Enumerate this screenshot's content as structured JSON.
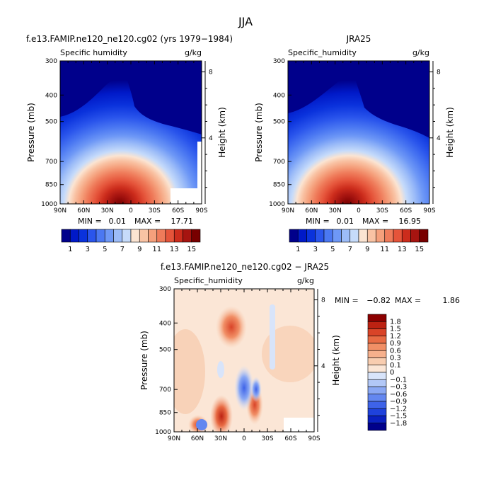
{
  "page_title": "JJA",
  "colors": {
    "humidity_scale": [
      "#00008b",
      "#0019c8",
      "#0a32dc",
      "#2a55ec",
      "#4b78f2",
      "#6e98f6",
      "#9cbcf8",
      "#c6dbfa",
      "#fbe4d2",
      "#f9c3a4",
      "#f5a07c",
      "#ef7b5a",
      "#e5543a",
      "#cc2c1c",
      "#a61410",
      "#780000"
    ],
    "diff_scale": [
      "#00008b",
      "#0a20c0",
      "#1f42dc",
      "#3e63e8",
      "#6387f0",
      "#8aa8f4",
      "#b2c8f7",
      "#d8e4fa",
      "#fbe6d6",
      "#f8cdb0",
      "#f6b08c",
      "#f18f66",
      "#e86b44",
      "#d94428",
      "#bc2212",
      "#8c0000"
    ]
  },
  "chart_data": [
    {
      "type": "heatmap",
      "title": "f.e13.FAMIP.ne120_ne120.cg02 (yrs 1979−1984)",
      "subtitle_left": "Specific humidity",
      "subtitle_right": "g/kg",
      "xlabel": "",
      "ylabel": "Pressure (mb)",
      "y2label": "Height (km)",
      "x_ticks": [
        "90N",
        "60N",
        "30N",
        "0",
        "30S",
        "60S",
        "90S"
      ],
      "y_ticks": [
        "300",
        "400",
        "500",
        "700",
        "850",
        "1000"
      ],
      "y2_ticks": [
        "8",
        "4"
      ],
      "stats": {
        "min_label": "MIN =",
        "min": "0.01",
        "max_label": "MAX =",
        "max": "17.71"
      },
      "colorbar_labels": [
        "1",
        "3",
        "5",
        "7",
        "9",
        "11",
        "13",
        "15"
      ]
    },
    {
      "type": "heatmap",
      "title": "JRA25",
      "subtitle_left": "Specific_humidity",
      "subtitle_right": "g/kg",
      "xlabel": "",
      "ylabel": "Pressure (mb)",
      "y2label": "Height (km)",
      "x_ticks": [
        "90N",
        "60N",
        "30N",
        "0",
        "30S",
        "60S",
        "90S"
      ],
      "y_ticks": [
        "300",
        "400",
        "500",
        "700",
        "850",
        "1000"
      ],
      "y2_ticks": [
        "8",
        "4"
      ],
      "stats": {
        "min_label": "MIN =",
        "min": "0.01",
        "max_label": "MAX =",
        "max": "16.95"
      },
      "colorbar_labels": [
        "1",
        "3",
        "5",
        "7",
        "9",
        "11",
        "13",
        "15"
      ]
    },
    {
      "type": "heatmap",
      "title": "f.e13.FAMIP.ne120_ne120.cg02 − JRA25",
      "subtitle_left": "Specific_humidity",
      "subtitle_right": "g/kg",
      "xlabel": "",
      "ylabel": "Pressure (mb)",
      "y2label": "Height (km)",
      "x_ticks": [
        "90N",
        "60N",
        "30N",
        "0",
        "30S",
        "60S",
        "90S"
      ],
      "y_ticks": [
        "300",
        "400",
        "500",
        "700",
        "850",
        "1000"
      ],
      "y2_ticks": [
        "8",
        "4"
      ],
      "stats": {
        "min_label": "MIN =",
        "min": "−0.82",
        "max_label": "MAX =",
        "max": "1.86"
      },
      "colorbar_labels": [
        "1.8",
        "1.5",
        "1.2",
        "0.9",
        "0.6",
        "0.3",
        "0.1",
        "0",
        "−0.1",
        "−0.3",
        "−0.6",
        "−0.9",
        "−1.2",
        "−1.5",
        "−1.8"
      ]
    }
  ]
}
